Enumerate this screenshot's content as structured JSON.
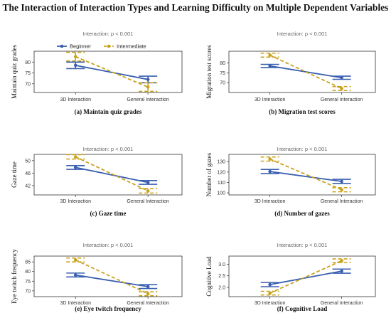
{
  "figure": {
    "title": "The Interaction of Interaction Types and Learning Difficulty on Multiple Dependent Variables",
    "legend": [
      {
        "name": "Beginner",
        "color": "#3A5FB0"
      },
      {
        "name": "Intermediate",
        "color": "#C9A21C"
      }
    ]
  },
  "chart_data": [
    {
      "type": "line",
      "caption": "(a) Maintain quiz grades",
      "annotation": "Interaction: p < 0.001",
      "ylabel": "Maintain quiz grades",
      "categories": [
        "3D Interaction",
        "General Interaction"
      ],
      "yticks": [
        70,
        75,
        80
      ],
      "ylim": [
        66,
        85
      ],
      "show_legend": true,
      "series": [
        {
          "name": "Beginner",
          "values": [
            78.5,
            72.0
          ],
          "ci": [
            [
              77.0,
              80.0
            ],
            [
              70.5,
              73.5
            ]
          ]
        },
        {
          "name": "Intermediate",
          "values": [
            82.5,
            68.5
          ],
          "ci": [
            [
              80.5,
              84.5
            ],
            [
              66.5,
              70.5
            ]
          ]
        }
      ]
    },
    {
      "type": "line",
      "caption": "(b) Migration test scores",
      "annotation": "Interaction: p < 0.001",
      "ylabel": "Migration test scores",
      "categories": [
        "3D Interaction",
        "General Interaction"
      ],
      "yticks": [
        70,
        75,
        80
      ],
      "ylim": [
        65,
        86
      ],
      "series": [
        {
          "name": "Beginner",
          "values": [
            78.5,
            72.5
          ],
          "ci": [
            [
              77.7,
              79.3
            ],
            [
              71.7,
              73.3
            ]
          ]
        },
        {
          "name": "Intermediate",
          "values": [
            84.0,
            67.0
          ],
          "ci": [
            [
              83.0,
              85.0
            ],
            [
              66.0,
              68.0
            ]
          ]
        }
      ]
    },
    {
      "type": "line",
      "caption": "(c) Gaze time",
      "annotation": "Interaction: p < 0.001",
      "ylabel": "Gaze time",
      "categories": [
        "3D Interaction",
        "General Interaction"
      ],
      "yticks": [
        42,
        46,
        50
      ],
      "ylim": [
        39,
        52
      ],
      "series": [
        {
          "name": "Beginner",
          "values": [
            47.8,
            43.0
          ],
          "ci": [
            [
              47.2,
              48.4
            ],
            [
              42.4,
              43.6
            ]
          ]
        },
        {
          "name": "Intermediate",
          "values": [
            51.2,
            40.3
          ],
          "ci": [
            [
              50.5,
              51.9
            ],
            [
              39.6,
              41.0
            ]
          ]
        }
      ]
    },
    {
      "type": "line",
      "caption": "(d) Number of gazes",
      "annotation": "Interaction: p < 0.001",
      "ylabel": "Number of gazes",
      "categories": [
        "3D Interaction",
        "General Interaction"
      ],
      "yticks": [
        100,
        110,
        120,
        130
      ],
      "ylim": [
        98,
        137
      ],
      "series": [
        {
          "name": "Beginner",
          "values": [
            120.5,
            111.0
          ],
          "ci": [
            [
              118.5,
              122.5
            ],
            [
              109.0,
              113.0
            ]
          ]
        },
        {
          "name": "Intermediate",
          "values": [
            132.5,
            103.0
          ],
          "ci": [
            [
              130.5,
              134.5
            ],
            [
              101.0,
              105.0
            ]
          ]
        }
      ]
    },
    {
      "type": "line",
      "caption": "(e) Eye twitch frequency",
      "annotation": "Interaction: p < 0.001",
      "ylabel": "Eye twitch frequency",
      "categories": [
        "3D Interaction",
        "General Interaction"
      ],
      "yticks": [
        70,
        75,
        80,
        85
      ],
      "ylim": [
        67,
        88
      ],
      "series": [
        {
          "name": "Beginner",
          "values": [
            78.2,
            72.2
          ],
          "ci": [
            [
              77.2,
              79.2
            ],
            [
              71.2,
              73.2
            ]
          ]
        },
        {
          "name": "Intermediate",
          "values": [
            86.0,
            68.5
          ],
          "ci": [
            [
              85.0,
              87.0
            ],
            [
              67.5,
              69.5
            ]
          ]
        }
      ]
    },
    {
      "type": "line",
      "caption": "(f) Cognitive Load",
      "annotation": "Interaction: p < 0.001",
      "ylabel": "Cognitive Load",
      "categories": [
        "3D Interaction",
        "General Interaction"
      ],
      "yticks": [
        2.0,
        2.5,
        3.0
      ],
      "ylim": [
        1.6,
        3.35
      ],
      "series": [
        {
          "name": "Beginner",
          "values": [
            2.12,
            2.7
          ],
          "ci": [
            [
              2.03,
              2.21
            ],
            [
              2.61,
              2.79
            ]
          ]
        },
        {
          "name": "Intermediate",
          "values": [
            1.75,
            3.15
          ],
          "ci": [
            [
              1.67,
              1.83
            ],
            [
              3.07,
              3.23
            ]
          ]
        }
      ]
    }
  ]
}
